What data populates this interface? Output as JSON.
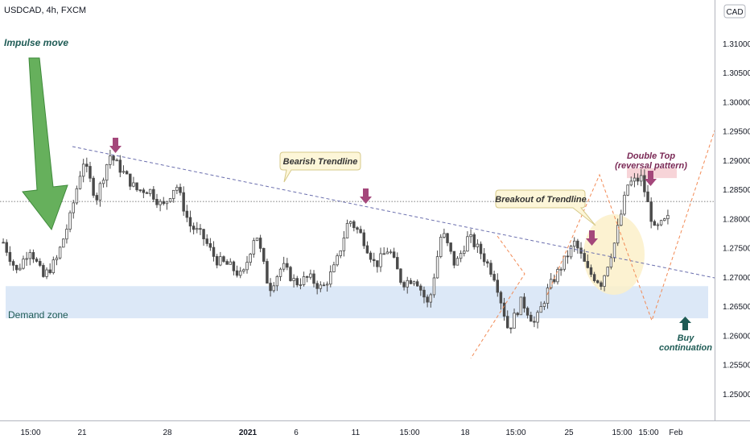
{
  "symbol_label": "USDCAD, 4h, FXCM",
  "currency_badge": "CAD",
  "colors": {
    "background": "#ffffff",
    "candle_up": "#ffffff",
    "candle_down": "#4a4a4a",
    "candle_border": "#4a4a4a",
    "trendline": "#6b6fae",
    "projection": "#f28a55",
    "demand_zone": "#dce8f7",
    "arrow_marker": "#a4477b",
    "impulse_arrow": "#66b05c",
    "buy_arrow": "#1e5b55",
    "double_top_zone": "#f7d4d8",
    "breakout_circle": "#fbf0c9"
  },
  "annotations": {
    "impulse": "Impulse move",
    "bearish_trendline": "Bearish Trendline",
    "breakout": "Breakout of Trendline",
    "double_top_line1": "Double Top",
    "double_top_line2": "(reversal pattern)",
    "demand_zone": "Demand zone",
    "buy_line1": "Buy",
    "buy_line2": "continuation"
  },
  "icons": {
    "impulse_arrow": "down-arrow-icon",
    "marker": "down-arrow-icon",
    "buy_arrow": "up-arrow-icon"
  },
  "chart_data": {
    "type": "candlestick",
    "ylim": [
      1.2455,
      1.3175
    ],
    "y_ticks": [
      "1.31000",
      "1.30500",
      "1.30000",
      "1.29500",
      "1.29000",
      "1.28500",
      "1.28000",
      "1.27500",
      "1.27000",
      "1.26500",
      "1.26000",
      "1.25500",
      "1.25000"
    ],
    "x_ticks": [
      {
        "label": "15:00",
        "bold": false
      },
      {
        "label": "21",
        "bold": false
      },
      {
        "label": "28",
        "bold": false
      },
      {
        "label": "2021",
        "bold": true
      },
      {
        "label": "6",
        "bold": false
      },
      {
        "label": "11",
        "bold": false
      },
      {
        "label": "15:00",
        "bold": false
      },
      {
        "label": "18",
        "bold": false
      },
      {
        "label": "15:00",
        "bold": false
      },
      {
        "label": "25",
        "bold": false
      },
      {
        "label": "15:00",
        "bold": false
      },
      {
        "label": "15:00",
        "bold": false
      },
      {
        "label": "Feb",
        "bold": false
      }
    ],
    "reference_level": 1.283,
    "demand_zone": [
      1.263,
      1.2685
    ],
    "double_top_zone": [
      1.287,
      1.2887
    ],
    "price_path": [
      1.276,
      1.271,
      1.275,
      1.27,
      1.273,
      1.28,
      1.29,
      1.2835,
      1.291,
      1.288,
      1.285,
      1.285,
      1.282,
      1.286,
      1.279,
      1.277,
      1.273,
      1.272,
      1.27,
      1.278,
      1.268,
      1.272,
      1.269,
      1.27,
      1.268,
      1.272,
      1.28,
      1.277,
      1.272,
      1.275,
      1.269,
      1.27,
      1.265,
      1.278,
      1.272,
      1.277,
      1.274,
      1.27,
      1.261,
      1.266,
      1.262,
      1.268,
      1.272,
      1.276,
      1.271,
      1.269,
      1.276,
      1.286,
      1.287,
      1.278,
      1.28
    ]
  }
}
